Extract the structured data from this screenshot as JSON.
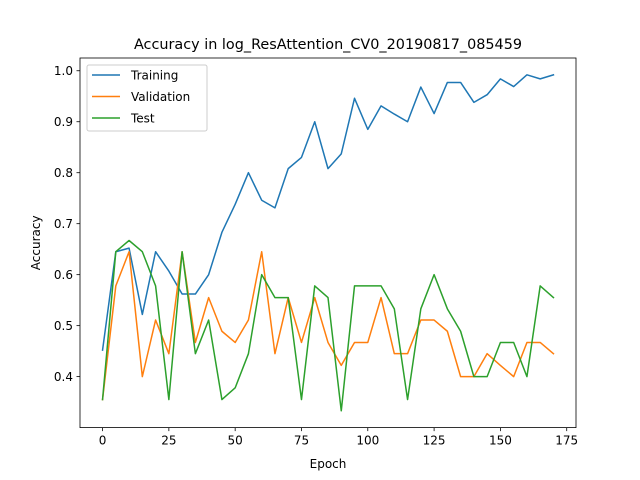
{
  "chart_data": {
    "type": "line",
    "title": "Accuracy in log_ResAttention_CV0_20190817_085459",
    "xlabel": "Epoch",
    "ylabel": "Accuracy",
    "xlim": [
      -8.5,
      178.5
    ],
    "ylim": [
      0.3,
      1.025
    ],
    "xticks": [
      0,
      25,
      50,
      75,
      100,
      125,
      150,
      175
    ],
    "yticks": [
      0.4,
      0.5,
      0.6,
      0.7,
      0.8,
      0.9,
      1.0
    ],
    "xtick_labels": [
      "0",
      "25",
      "50",
      "75",
      "100",
      "125",
      "150",
      "175"
    ],
    "ytick_labels": [
      "0.4",
      "0.5",
      "0.6",
      "0.7",
      "0.8",
      "0.9",
      "1.0"
    ],
    "grid": false,
    "legend_position": "top-left",
    "x": [
      0,
      5,
      10,
      15,
      20,
      25,
      30,
      35,
      40,
      45,
      50,
      55,
      60,
      65,
      70,
      75,
      80,
      85,
      90,
      95,
      100,
      105,
      110,
      115,
      120,
      125,
      130,
      135,
      140,
      145,
      150,
      155,
      160,
      165,
      170
    ],
    "series": [
      {
        "name": "Training",
        "color": "#1f77b4",
        "values": [
          0.452,
          0.645,
          0.652,
          0.522,
          0.645,
          0.607,
          0.562,
          0.562,
          0.6,
          0.683,
          0.738,
          0.8,
          0.746,
          0.731,
          0.808,
          0.83,
          0.9,
          0.808,
          0.837,
          0.946,
          0.885,
          0.931,
          0.915,
          0.9,
          0.968,
          0.916,
          0.977,
          0.977,
          0.938,
          0.953,
          0.984,
          0.969,
          0.992,
          0.984,
          0.992
        ]
      },
      {
        "name": "Validation",
        "color": "#ff7f0e",
        "values": [
          0.355,
          0.578,
          0.645,
          0.4,
          0.511,
          0.445,
          0.645,
          0.467,
          0.555,
          0.489,
          0.467,
          0.511,
          0.645,
          0.445,
          0.555,
          0.467,
          0.555,
          0.467,
          0.422,
          0.467,
          0.467,
          0.555,
          0.445,
          0.445,
          0.511,
          0.511,
          0.489,
          0.4,
          0.4,
          0.445,
          0.422,
          0.4,
          0.467,
          0.467,
          0.445
        ]
      },
      {
        "name": "Test",
        "color": "#2ca02c",
        "values": [
          0.355,
          0.645,
          0.667,
          0.645,
          0.578,
          0.355,
          0.645,
          0.445,
          0.511,
          0.355,
          0.378,
          0.445,
          0.6,
          0.555,
          0.555,
          0.355,
          0.578,
          0.555,
          0.333,
          0.578,
          0.578,
          0.578,
          0.533,
          0.355,
          0.533,
          0.6,
          0.533,
          0.489,
          0.4,
          0.4,
          0.467,
          0.467,
          0.4,
          0.578,
          0.555
        ]
      }
    ]
  }
}
